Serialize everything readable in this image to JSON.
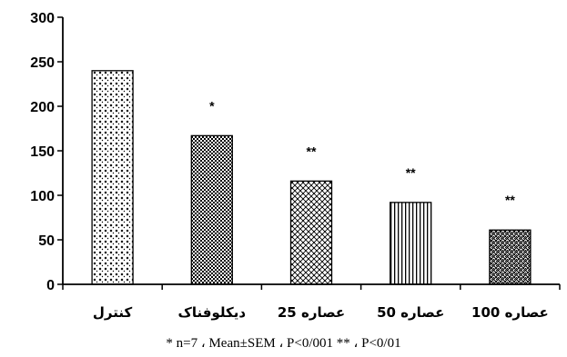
{
  "chart_data": {
    "type": "bar",
    "categories": [
      "کنترل",
      "دیکلوفناک",
      "عصاره 25",
      "عصاره 50",
      "عصاره 100"
    ],
    "values": [
      240,
      167,
      116,
      92,
      61
    ],
    "significance": [
      "",
      "*",
      "**",
      "**",
      "**"
    ],
    "title": "",
    "xlabel": "",
    "ylabel": "",
    "ylim": [
      0,
      300
    ],
    "yticks": [
      0,
      50,
      100,
      150,
      200,
      250,
      300
    ],
    "grid": false,
    "legend": "none",
    "footnote": "n=7 ، Mean±SEM ، P<0/001 ** ، P<0/01 *",
    "bar_fill": "#ffffff",
    "bar_pattern_color": "#000000",
    "bar_patterns": [
      "light-dots",
      "dense-checker",
      "diagonal-mesh",
      "vertical-lines",
      "dense-dots"
    ]
  }
}
